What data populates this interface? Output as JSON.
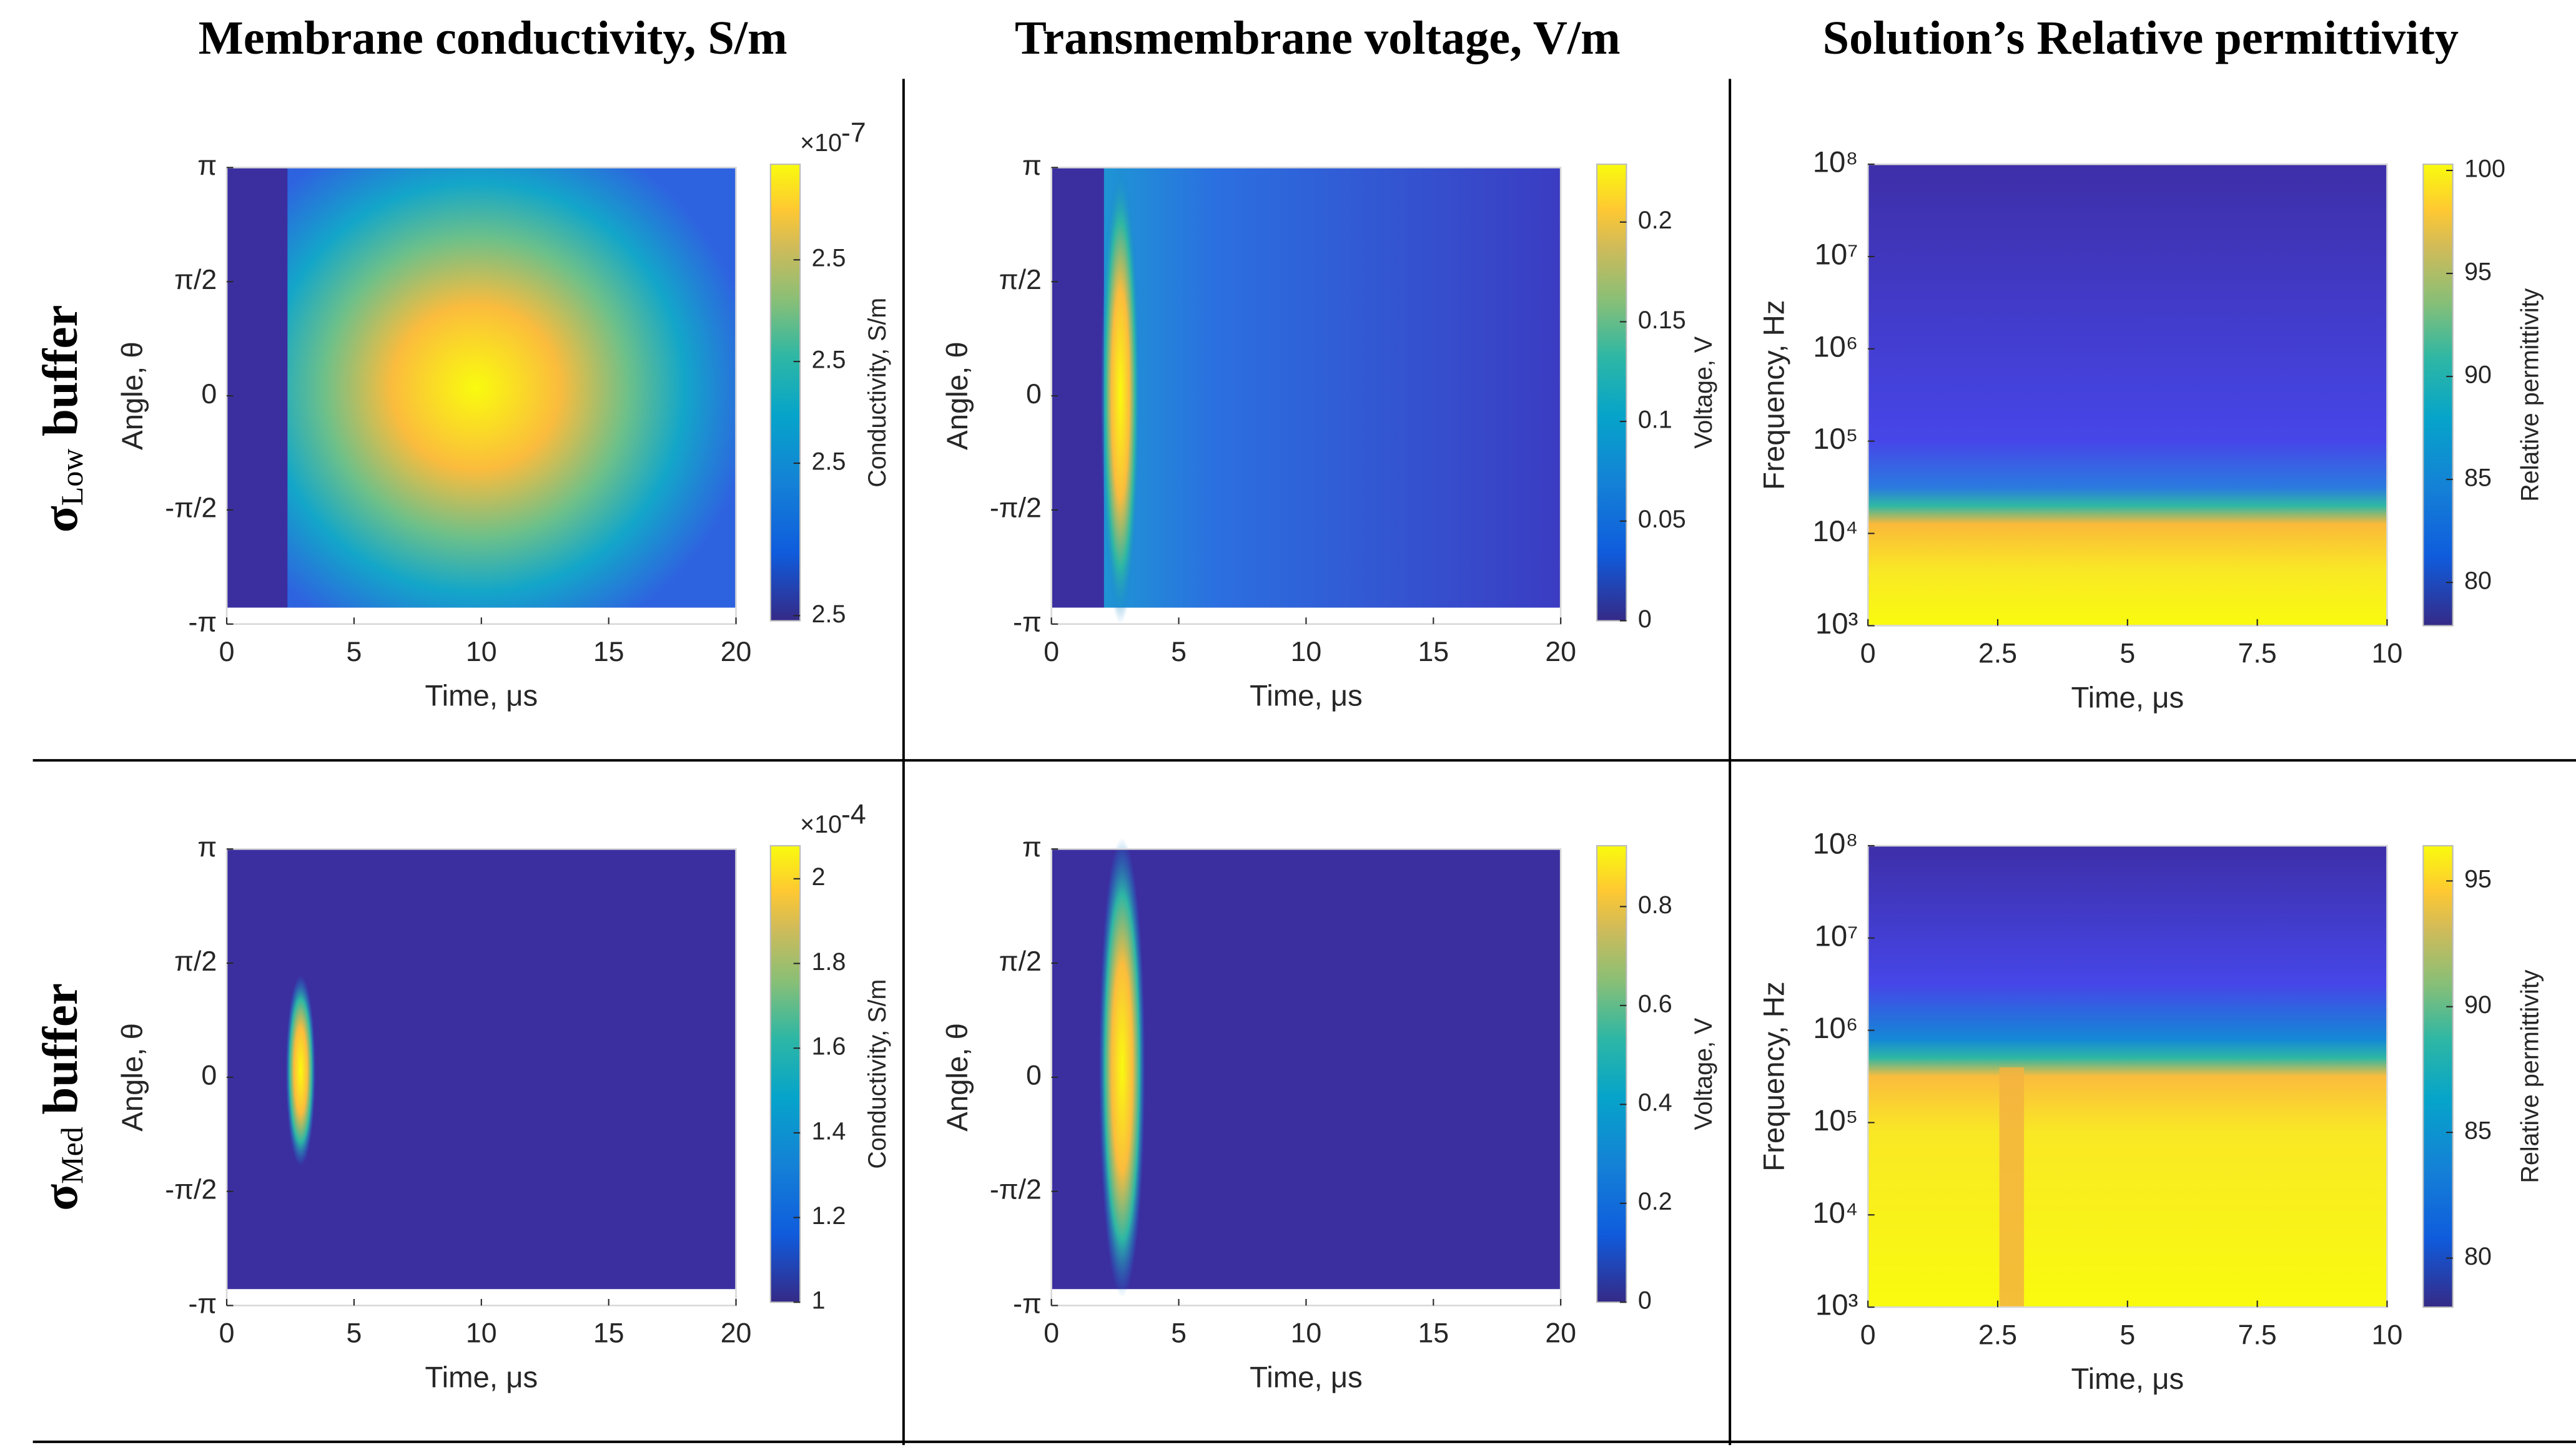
{
  "columns": [
    "Membrane conductivity, S/m",
    "Transmembrane voltage, V/m",
    "Solution’s Relative permittivity"
  ],
  "rows": [
    {
      "symbol": "σ",
      "subscript": "Low",
      "text": " buffer"
    },
    {
      "symbol": "σ",
      "subscript": "Med",
      "text": " buffer"
    }
  ],
  "chart_data": [
    {
      "type": "heatmap",
      "xlabel": "Time, μs",
      "ylabel": "Angle, θ",
      "xlim": [
        0,
        20
      ],
      "xticks": [
        0,
        5,
        10,
        15,
        20
      ],
      "ylim": [
        -3.1416,
        3.1416
      ],
      "yticks": [
        {
          "value": -3.1416,
          "label": "-π"
        },
        {
          "value": -1.5708,
          "label": "-π/2"
        },
        0,
        {
          "value": 1.5708,
          "label": "π/2"
        },
        {
          "value": 3.1416,
          "label": "π"
        }
      ],
      "colorbar": {
        "label": "Conductivity, S/m",
        "lim": [
          2.4995,
          2.5444
        ],
        "ticks": [
          2.5,
          {
            "value": 2.515,
            "label": "2.5"
          },
          {
            "value": 2.525,
            "label": "2.5"
          },
          {
            "value": 2.535,
            "label": "2.5"
          }
        ],
        "multiplier": "×10",
        "power": "-7"
      }
    },
    {
      "type": "heatmap",
      "xlabel": "Time, μs",
      "ylabel": "Angle, θ",
      "xlim": [
        0,
        20
      ],
      "xticks": [
        0,
        5,
        10,
        15,
        20
      ],
      "ylim": [
        -3.1416,
        3.1416
      ],
      "yticks": [
        {
          "value": -3.1416,
          "label": "-π"
        },
        {
          "value": -1.5708,
          "label": "-π/2"
        },
        0,
        {
          "value": 1.5708,
          "label": "π/2"
        },
        {
          "value": 3.1416,
          "label": "π"
        }
      ],
      "colorbar": {
        "label": "Voltage, V",
        "lim": [
          0,
          0.229
        ],
        "ticks": [
          0,
          0.05,
          0.1,
          0.15,
          0.2
        ]
      }
    },
    {
      "type": "heatmap",
      "xlabel": "Time, μs",
      "ylabel": "Frequency, Hz",
      "ylog": true,
      "xlim": [
        0,
        10
      ],
      "xticks": [
        0,
        2.5,
        5,
        7.5,
        10
      ],
      "ylim": [
        1000,
        100000000
      ],
      "yticks": [
        {
          "value": 1000,
          "label": "10³"
        },
        {
          "value": 10000,
          "label": "10⁴"
        },
        {
          "value": 100000,
          "label": "10⁵"
        },
        {
          "value": 1000000,
          "label": "10⁶"
        },
        {
          "value": 10000000,
          "label": "10⁷"
        },
        {
          "value": 100000000,
          "label": "10⁸"
        }
      ],
      "colorbar": {
        "label": "Relative permittivity",
        "lim": [
          77.9,
          100.3
        ],
        "ticks": [
          80,
          85,
          90,
          95,
          100
        ]
      }
    },
    {
      "type": "heatmap",
      "xlabel": "Time, μs",
      "ylabel": "Angle, θ",
      "xlim": [
        0,
        20
      ],
      "xticks": [
        0,
        5,
        10,
        15,
        20
      ],
      "ylim": [
        -3.1416,
        3.1416
      ],
      "yticks": [
        {
          "value": -3.1416,
          "label": "-π"
        },
        {
          "value": -1.5708,
          "label": "-π/2"
        },
        0,
        {
          "value": 1.5708,
          "label": "π/2"
        },
        {
          "value": 3.1416,
          "label": "π"
        }
      ],
      "colorbar": {
        "label": "Conductivity, S/m",
        "lim": [
          1,
          2.078
        ],
        "ticks": [
          1,
          1.2,
          1.4,
          1.6,
          1.8,
          2
        ],
        "multiplier": "×10",
        "power": "-4"
      }
    },
    {
      "type": "heatmap",
      "xlabel": "Time, μs",
      "ylabel": "Angle, θ",
      "xlim": [
        0,
        20
      ],
      "xticks": [
        0,
        5,
        10,
        15,
        20
      ],
      "ylim": [
        -3.1416,
        3.1416
      ],
      "yticks": [
        {
          "value": -3.1416,
          "label": "-π"
        },
        {
          "value": -1.5708,
          "label": "-π/2"
        },
        0,
        {
          "value": 1.5708,
          "label": "π/2"
        },
        {
          "value": 3.1416,
          "label": "π"
        }
      ],
      "colorbar": {
        "label": "Voltage, V",
        "lim": [
          0,
          0.923
        ],
        "ticks": [
          0,
          0.2,
          0.4,
          0.6,
          0.8
        ]
      }
    },
    {
      "type": "heatmap",
      "xlabel": "Time, μs",
      "ylabel": "Frequency, Hz",
      "ylog": true,
      "xlim": [
        0,
        10
      ],
      "xticks": [
        0,
        2.5,
        5,
        7.5,
        10
      ],
      "ylim": [
        1000,
        100000000
      ],
      "yticks": [
        {
          "value": 1000,
          "label": "10³"
        },
        {
          "value": 10000,
          "label": "10⁴"
        },
        {
          "value": 100000,
          "label": "10⁵"
        },
        {
          "value": 1000000,
          "label": "10⁶"
        },
        {
          "value": 10000000,
          "label": "10⁷"
        },
        {
          "value": 100000000,
          "label": "10⁸"
        }
      ],
      "colorbar": {
        "label": "Relative permittivity",
        "lim": [
          78.05,
          96.4
        ],
        "ticks": [
          80,
          85,
          90,
          95
        ]
      }
    }
  ]
}
